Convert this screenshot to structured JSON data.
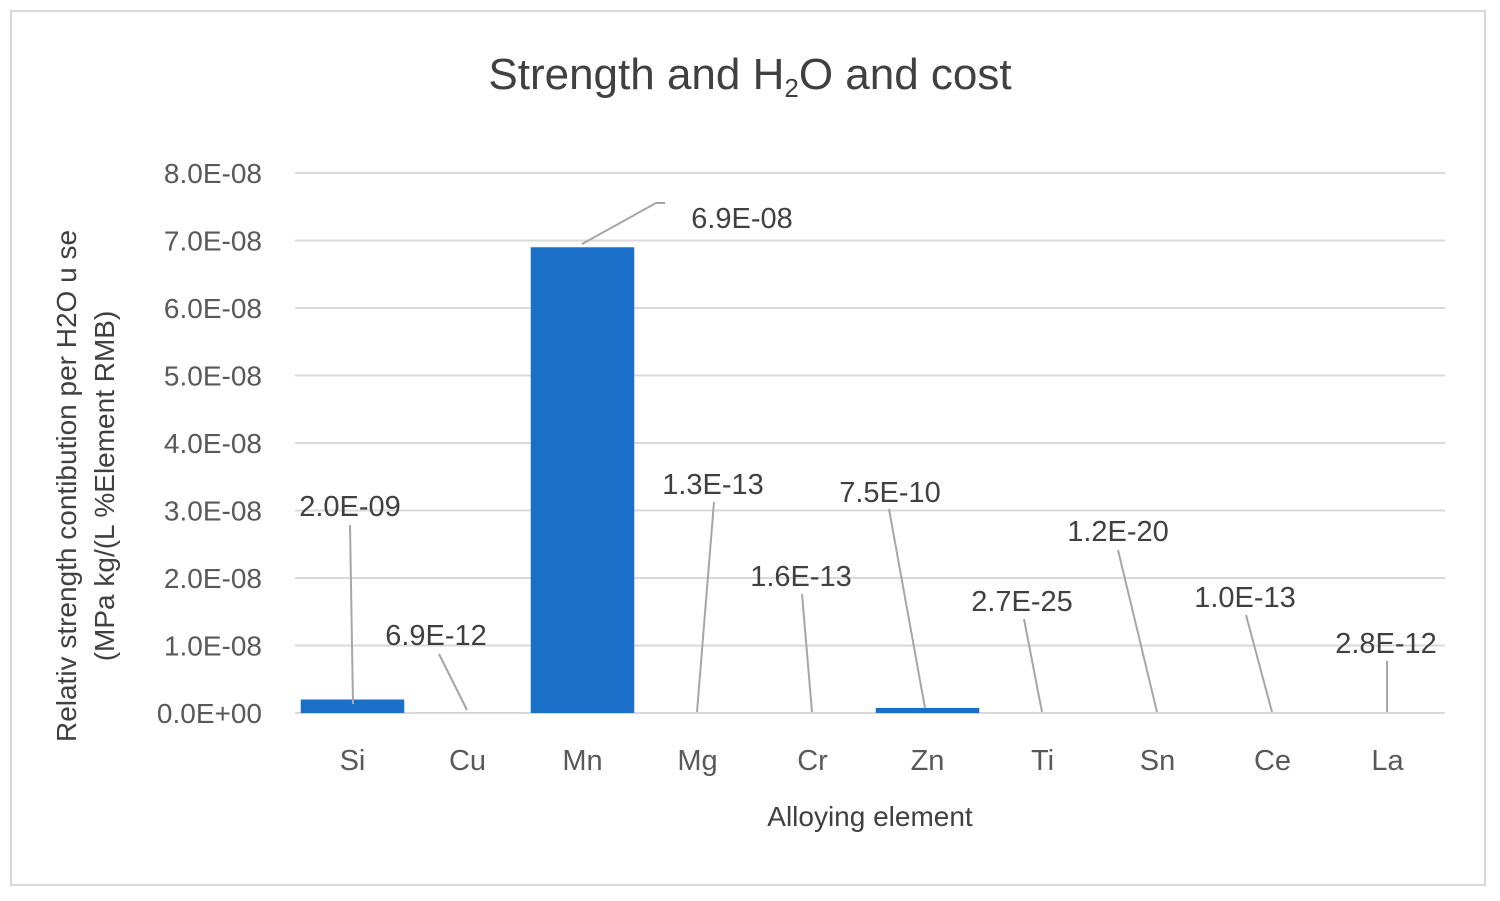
{
  "chart_data": {
    "type": "bar",
    "title_parts": {
      "pre": "Strength and H",
      "sub": "2",
      "post": "O and cost"
    },
    "xlabel": "Alloying element",
    "ylabel_line1": "Relativ  strength contibution per H2O u se",
    "ylabel_line2": "(MPa kg/(L %Element  RMB)",
    "categories": [
      "Si",
      "Cu",
      "Mn",
      "Mg",
      "Cr",
      "Zn",
      "Ti",
      "Sn",
      "Ce",
      "La"
    ],
    "values": [
      2e-09,
      6.9e-12,
      6.9e-08,
      1.3e-13,
      1.6e-13,
      7.5e-10,
      2.7e-25,
      1.2e-20,
      1e-13,
      2.8e-12
    ],
    "data_labels": [
      "2.0E-09",
      "6.9E-12",
      "6.9E-08",
      "1.3E-13",
      "1.6E-13",
      "7.5E-10",
      "2.7E-25",
      "1.2E-20",
      "1.0E-13",
      "2.8E-12"
    ],
    "ylim": [
      0,
      8e-08
    ],
    "y_ticks": [
      "0.0E+00",
      "1.0E-08",
      "2.0E-08",
      "3.0E-08",
      "4.0E-08",
      "5.0E-08",
      "6.0E-08",
      "7.0E-08",
      "8.0E-08"
    ],
    "grid": true,
    "bar_color": "#1a6fc9",
    "grid_color": "#d9d9d9",
    "leader_color": "#a6a6a6"
  }
}
